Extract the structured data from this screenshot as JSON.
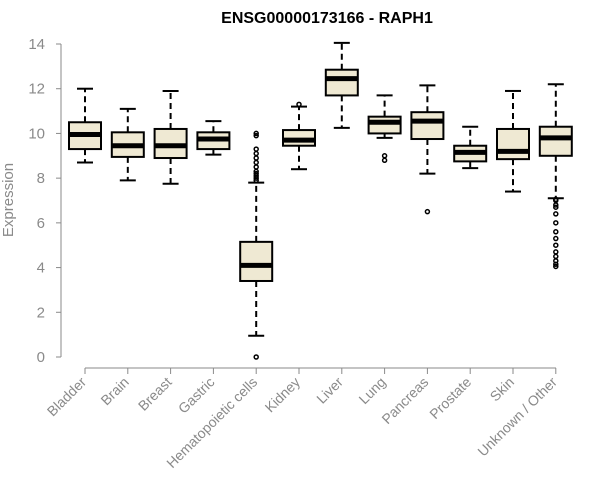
{
  "chart_data": {
    "type": "box",
    "title": "ENSG00000173166 - RAPH1",
    "xlabel": "",
    "ylabel": "Expression",
    "ylim": [
      0,
      14
    ],
    "yticks": [
      0,
      2,
      4,
      6,
      8,
      10,
      12,
      14
    ],
    "box_fill": "#efe9d3",
    "median_color": "#000000",
    "categories": [
      "Bladder",
      "Brain",
      "Breast",
      "Gastric",
      "Hematopoietic cells",
      "Kidney",
      "Liver",
      "Lung",
      "Pancreas",
      "Prostate",
      "Skin",
      "Unknown / Other"
    ],
    "boxes": [
      {
        "category": "Bladder",
        "min": 8.7,
        "q1": 9.3,
        "median": 9.95,
        "q3": 10.5,
        "max": 12.0,
        "outliers": []
      },
      {
        "category": "Brain",
        "min": 7.9,
        "q1": 8.95,
        "median": 9.45,
        "q3": 10.05,
        "max": 11.1,
        "outliers": []
      },
      {
        "category": "Breast",
        "min": 7.75,
        "q1": 8.9,
        "median": 9.45,
        "q3": 10.2,
        "max": 11.9,
        "outliers": []
      },
      {
        "category": "Gastric",
        "min": 9.05,
        "q1": 9.3,
        "median": 9.75,
        "q3": 10.05,
        "max": 10.55,
        "outliers": []
      },
      {
        "category": "Hematopoietic cells",
        "min": 0.95,
        "q1": 3.4,
        "median": 4.1,
        "q3": 5.15,
        "max": 7.8,
        "outliers": [
          0.0,
          7.9,
          8.0,
          8.1,
          8.2,
          8.3,
          8.5,
          8.7,
          8.9,
          9.1,
          9.3,
          9.9,
          10.0
        ]
      },
      {
        "category": "Kidney",
        "min": 8.4,
        "q1": 9.45,
        "median": 9.7,
        "q3": 10.15,
        "max": 11.2,
        "outliers": [
          11.3
        ]
      },
      {
        "category": "Liver",
        "min": 10.25,
        "q1": 11.7,
        "median": 12.45,
        "q3": 12.85,
        "max": 14.05,
        "outliers": []
      },
      {
        "category": "Lung",
        "min": 9.8,
        "q1": 10.0,
        "median": 10.5,
        "q3": 10.75,
        "max": 11.7,
        "outliers": [
          8.8,
          9.0
        ]
      },
      {
        "category": "Pancreas",
        "min": 8.2,
        "q1": 9.75,
        "median": 10.55,
        "q3": 10.95,
        "max": 12.15,
        "outliers": [
          6.5
        ]
      },
      {
        "category": "Prostate",
        "min": 8.45,
        "q1": 8.75,
        "median": 9.15,
        "q3": 9.45,
        "max": 10.3,
        "outliers": []
      },
      {
        "category": "Skin",
        "min": 7.4,
        "q1": 8.85,
        "median": 9.2,
        "q3": 10.2,
        "max": 11.9,
        "outliers": []
      },
      {
        "category": "Unknown / Other",
        "min": 7.1,
        "q1": 9.0,
        "median": 9.8,
        "q3": 10.3,
        "max": 12.2,
        "outliers": [
          7.05,
          7.0,
          6.8,
          6.7,
          6.4,
          6.0,
          5.6,
          5.3,
          5.0,
          4.7,
          4.5,
          4.3,
          4.15,
          4.05
        ]
      }
    ]
  }
}
